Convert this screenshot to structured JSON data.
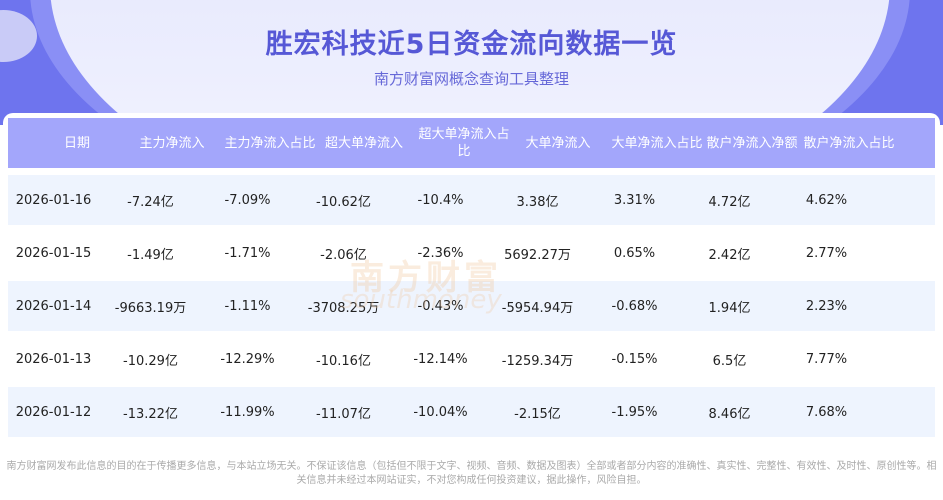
{
  "header": {
    "title": "胜宏科技近5日资金流向数据一览",
    "subtitle": "南方财富网概念查询工具整理"
  },
  "table": {
    "columns": [
      "日期",
      "主力净流入",
      "主力净流入占比",
      "超大单净流入",
      "超大单净流入占比",
      "大单净流入",
      "大单净流入占比",
      "散户净流入净额",
      "散户净流入占比"
    ],
    "rows": [
      [
        "2026-01-16",
        "-7.24亿",
        "-7.09%",
        "-10.62亿",
        "-10.4%",
        "3.38亿",
        "3.31%",
        "4.72亿",
        "4.62%"
      ],
      [
        "2026-01-15",
        "-1.49亿",
        "-1.71%",
        "-2.06亿",
        "-2.36%",
        "5692.27万",
        "0.65%",
        "2.42亿",
        "2.77%"
      ],
      [
        "2026-01-14",
        "-9663.19万",
        "-1.11%",
        "-3708.25万",
        "-0.43%",
        "-5954.94万",
        "-0.68%",
        "1.94亿",
        "2.23%"
      ],
      [
        "2026-01-13",
        "-10.29亿",
        "-12.29%",
        "-10.16亿",
        "-12.14%",
        "-1259.34万",
        "-0.15%",
        "6.5亿",
        "7.77%"
      ],
      [
        "2026-01-12",
        "-13.22亿",
        "-11.99%",
        "-11.07亿",
        "-10.04%",
        "-2.15亿",
        "-1.95%",
        "8.46亿",
        "7.68%"
      ]
    ]
  },
  "watermark": {
    "cn": "南方财富",
    "en": "southmoney"
  },
  "footer": "南方财富网发布此信息的目的在于传播更多信息，与本站立场无关。不保证该信息（包括但不限于文字、视频、音频、数据及图表）全部或者部分内容的准确性、真实性、完整性、有效性、及时性、原创性等。相关信息并未经过本网站证实，不对您构成任何投资建议，据此操作，风险自担。",
  "colors": {
    "brand": "#6e74ee",
    "header": "#a3a6fb",
    "title": "#5658d6",
    "row_alt": "#eef4fe"
  }
}
